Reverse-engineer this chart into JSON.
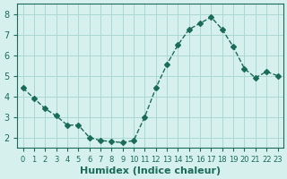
{
  "x": [
    0,
    1,
    2,
    3,
    4,
    5,
    6,
    7,
    8,
    9,
    10,
    11,
    12,
    13,
    14,
    15,
    16,
    17,
    18,
    19,
    20,
    21,
    22,
    23
  ],
  "y": [
    4.4,
    3.9,
    3.4,
    3.05,
    2.6,
    2.6,
    2.0,
    1.85,
    1.8,
    1.75,
    1.85,
    3.0,
    4.4,
    5.55,
    6.5,
    7.25,
    7.55,
    7.85,
    7.25,
    6.4,
    5.35,
    4.9,
    5.2,
    5.0
  ],
  "xlabel": "Humidex (Indice chaleur)",
  "line_color": "#1a6b5a",
  "marker": "D",
  "marker_size": 3,
  "bg_color": "#d6f0ee",
  "grid_color": "#aad8d3",
  "ylim": [
    1.5,
    8.5
  ],
  "xlim": [
    -0.5,
    23.5
  ],
  "yticks": [
    2,
    3,
    4,
    5,
    6,
    7,
    8
  ],
  "xtick_labels": [
    "0",
    "1",
    "2",
    "3",
    "4",
    "5",
    "6",
    "7",
    "8",
    "9",
    "10",
    "11",
    "12",
    "13",
    "14",
    "15",
    "16",
    "17",
    "18",
    "19",
    "20",
    "21",
    "22",
    "23"
  ],
  "tick_color": "#1a6b5a",
  "label_fontsize": 8,
  "tick_fontsize": 7
}
